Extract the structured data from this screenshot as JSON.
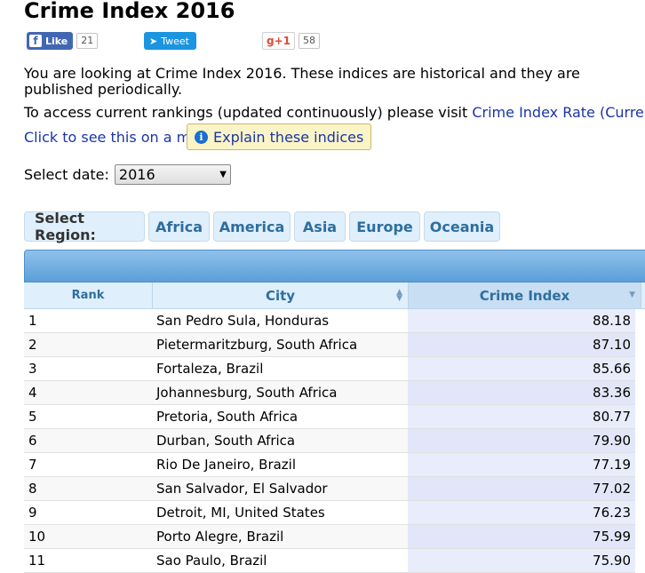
{
  "page": {
    "title": "Crime Index 2016"
  },
  "social": {
    "fb_label": "Like",
    "fb_count": "21",
    "tweet_label": "Tweet",
    "gplus_label": "+1",
    "gplus_count": "58"
  },
  "intro": {
    "text": "You are looking at Crime Index 2016. These indices are historical and they are published periodically.",
    "current_prefix": "To access current rankings (updated continuously) please visit ",
    "current_link": "Crime Index Rate (Current)",
    "current_suffix": ".",
    "map_link": "Click to see this on a map",
    "explain_button": "Explain these indices"
  },
  "date_select": {
    "label": "Select date:",
    "value": "2016"
  },
  "regions": {
    "label": "Select Region:",
    "items": [
      "Africa",
      "America",
      "Asia",
      "Europe",
      "Oceania"
    ]
  },
  "table": {
    "headers": {
      "rank": "Rank",
      "city": "City",
      "crime_index": "Crime Index"
    },
    "rows": [
      {
        "rank": "1",
        "city": "San Pedro Sula, Honduras",
        "index": "88.18"
      },
      {
        "rank": "2",
        "city": "Pietermaritzburg, South Africa",
        "index": "87.10"
      },
      {
        "rank": "3",
        "city": "Fortaleza, Brazil",
        "index": "85.66"
      },
      {
        "rank": "4",
        "city": "Johannesburg, South Africa",
        "index": "83.36"
      },
      {
        "rank": "5",
        "city": "Pretoria, South Africa",
        "index": "80.77"
      },
      {
        "rank": "6",
        "city": "Durban, South Africa",
        "index": "79.90"
      },
      {
        "rank": "7",
        "city": "Rio De Janeiro, Brazil",
        "index": "77.19"
      },
      {
        "rank": "8",
        "city": "San Salvador, El Salvador",
        "index": "77.02"
      },
      {
        "rank": "9",
        "city": "Detroit, MI, United States",
        "index": "76.23"
      },
      {
        "rank": "10",
        "city": "Porto Alegre, Brazil",
        "index": "75.99"
      },
      {
        "rank": "11",
        "city": "Sao Paulo, Brazil",
        "index": "75.90"
      }
    ]
  },
  "colors": {
    "link": "#1a35a8",
    "region_text": "#2e6e9e",
    "header_bar": "#5b9fd8"
  }
}
